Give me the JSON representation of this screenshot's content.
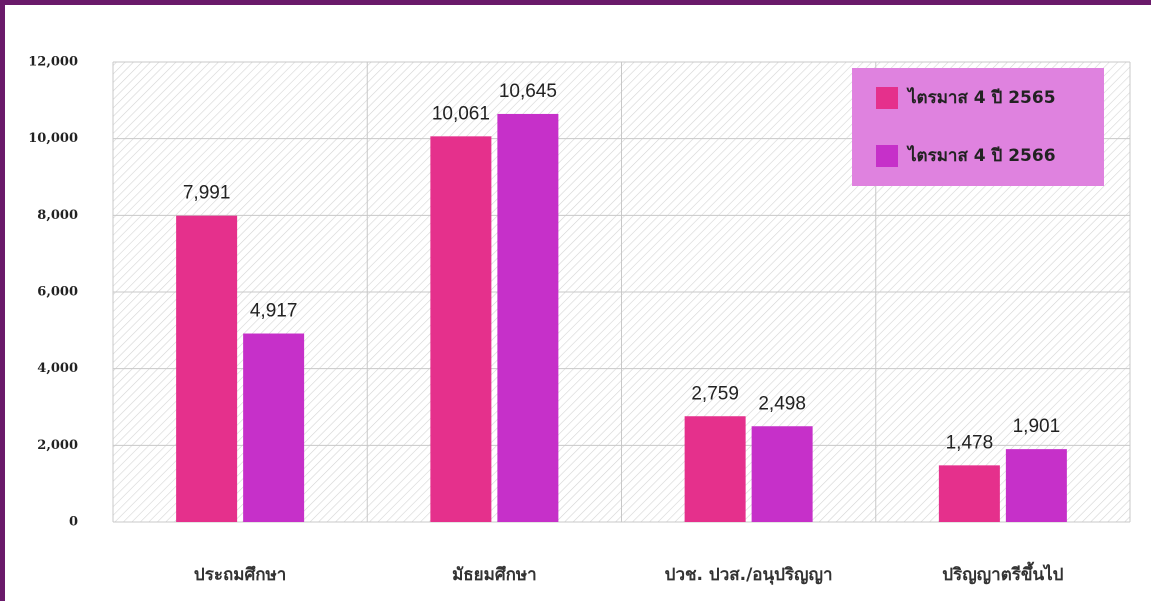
{
  "chart_data": {
    "type": "bar",
    "categories": [
      "ประถมศึกษา",
      "มัธยมศึกษา",
      "ปวช. ปวส./อนุปริญญา",
      "ปริญญาตรีขึ้นไป"
    ],
    "series": [
      {
        "name": "ไตรมาส 4 ปี 2565",
        "color": "#e5308c",
        "values": [
          7991,
          10061,
          2759,
          1478
        ],
        "value_labels": [
          "7,991",
          "10,061",
          "2,759",
          "1,478"
        ]
      },
      {
        "name": "ไตรมาส 4 ปี 2566",
        "color": "#c630c9",
        "values": [
          4917,
          10645,
          2498,
          1901
        ],
        "value_labels": [
          "4,917",
          "10,645",
          "2,498",
          "1,901"
        ]
      }
    ],
    "ylim": [
      0,
      12000
    ],
    "yticks": [
      0,
      {
        "value": 2000,
        "label": "2,000"
      },
      {
        "value": 4000,
        "label": "4,000"
      },
      {
        "value": 6000,
        "label": "6,000"
      },
      {
        "value": 8000,
        "label": "8,000"
      },
      {
        "value": 10000,
        "label": "10,000"
      },
      {
        "value": 12000,
        "label": "12,000"
      }
    ],
    "grid": true,
    "legend": "top-right"
  }
}
